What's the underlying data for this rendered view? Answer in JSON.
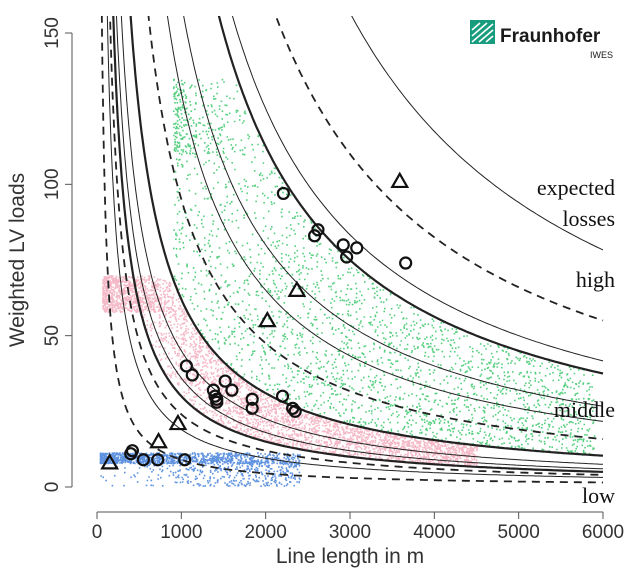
{
  "logo": {
    "name": "Fraunhofer",
    "subtitle": "IWES",
    "color": "#179c7d"
  },
  "chart_data": {
    "type": "scatter",
    "xlabel": "Line length in m",
    "ylabel": "Weighted LV loads",
    "xlim": [
      0,
      6000
    ],
    "ylim": [
      0,
      150
    ],
    "x_ticks": [
      "0",
      "1000",
      "2000",
      "3000",
      "4000",
      "5000",
      "6000"
    ],
    "y_ticks": [
      "0",
      "50",
      "100",
      "150"
    ],
    "band_labels": {
      "expected": "expected",
      "losses": "losses",
      "high": "high",
      "middle": "middle",
      "low": "low"
    },
    "colors": {
      "low": "#2a6fd6",
      "middle": "#f0a0b4",
      "high": "#1fbf55",
      "curve": "#222222"
    },
    "boundary_curves": [
      {
        "k": 30000,
        "style": "solid-bold"
      },
      {
        "k": 62000,
        "style": "solid-bold"
      },
      {
        "k": 225000,
        "style": "solid-bold"
      }
    ],
    "reference_curves": [
      {
        "k": 9000,
        "style": "dashed"
      },
      {
        "k": 19000,
        "style": "solid"
      },
      {
        "k": 24000,
        "style": "dashed"
      },
      {
        "k": 36000,
        "style": "solid"
      },
      {
        "k": 45000,
        "style": "solid"
      },
      {
        "k": 95000,
        "style": "dashed"
      },
      {
        "k": 130000,
        "style": "solid"
      },
      {
        "k": 160000,
        "style": "solid"
      },
      {
        "k": 250000,
        "style": "solid"
      },
      {
        "k": 330000,
        "style": "dashed"
      },
      {
        "k": 470000,
        "style": "solid"
      }
    ],
    "circle_markers": [
      {
        "x": 400,
        "y": 11
      },
      {
        "x": 420,
        "y": 12
      },
      {
        "x": 550,
        "y": 9
      },
      {
        "x": 720,
        "y": 9
      },
      {
        "x": 1040,
        "y": 9
      },
      {
        "x": 1060,
        "y": 40
      },
      {
        "x": 1130,
        "y": 37
      },
      {
        "x": 1380,
        "y": 32
      },
      {
        "x": 1400,
        "y": 30
      },
      {
        "x": 1420,
        "y": 29
      },
      {
        "x": 1420,
        "y": 28
      },
      {
        "x": 1520,
        "y": 35
      },
      {
        "x": 1600,
        "y": 32
      },
      {
        "x": 1840,
        "y": 29
      },
      {
        "x": 1840,
        "y": 26
      },
      {
        "x": 2200,
        "y": 30
      },
      {
        "x": 2320,
        "y": 26
      },
      {
        "x": 2350,
        "y": 25
      },
      {
        "x": 2210,
        "y": 97
      },
      {
        "x": 2580,
        "y": 83
      },
      {
        "x": 2620,
        "y": 85
      },
      {
        "x": 2920,
        "y": 80
      },
      {
        "x": 2960,
        "y": 76
      },
      {
        "x": 3080,
        "y": 79
      },
      {
        "x": 3660,
        "y": 74
      }
    ],
    "triangle_markers": [
      {
        "x": 150,
        "y": 8
      },
      {
        "x": 730,
        "y": 15
      },
      {
        "x": 960,
        "y": 21
      },
      {
        "x": 2020,
        "y": 55
      },
      {
        "x": 2370,
        "y": 65
      },
      {
        "x": 3590,
        "y": 101
      }
    ],
    "point_clouds": [
      {
        "group": "low",
        "count": 1500,
        "x_range": [
          30,
          2400
        ]
      },
      {
        "group": "middle",
        "count": 3500,
        "x_range": [
          60,
          4500
        ]
      },
      {
        "group": "high",
        "count": 2600,
        "x_range": [
          900,
          5900
        ]
      }
    ]
  }
}
